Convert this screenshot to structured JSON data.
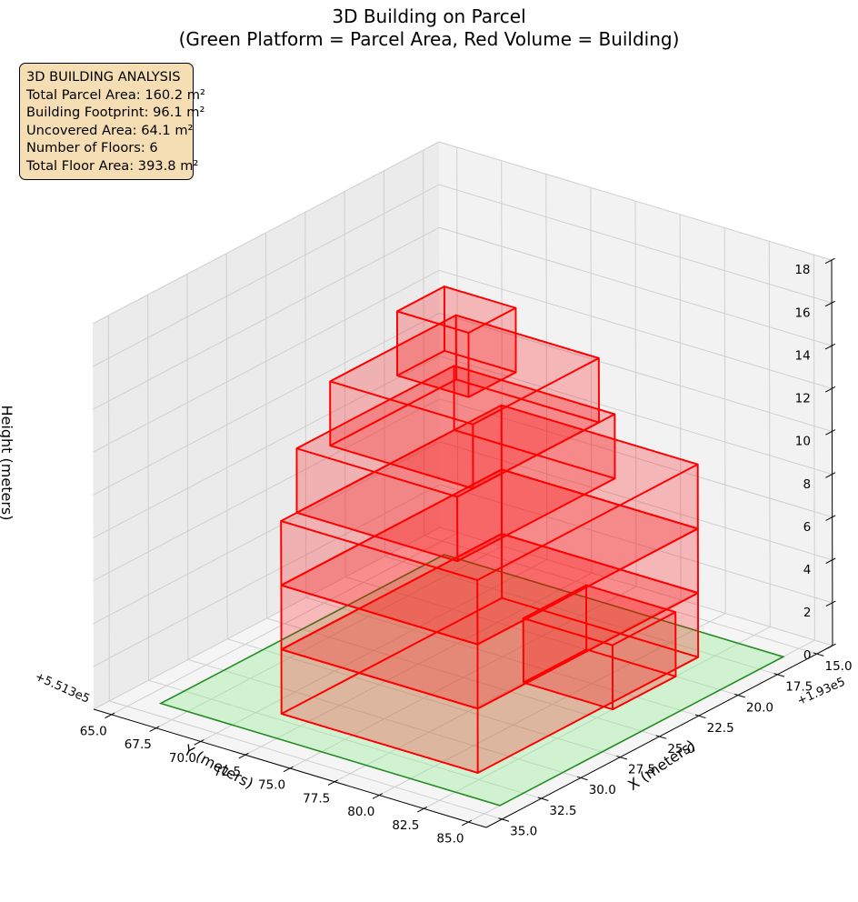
{
  "chart_data": {
    "type": "3d-bar",
    "title_line1": "3D Building on Parcel",
    "title_line2": "(Green Platform = Parcel Area, Red Volume = Building)",
    "xlabel": "X (meters)",
    "ylabel": "Y (meters)",
    "zlabel": "Height (meters)",
    "x_offset_label": "+1.93e5",
    "y_offset_label": "+5.513e5",
    "xlim": [
      64,
      86
    ],
    "ylim": [
      14,
      36
    ],
    "zlim": [
      0,
      18
    ],
    "x_ticks": [
      "65.0",
      "67.5",
      "70.0",
      "72.5",
      "75.0",
      "77.5",
      "80.0",
      "82.5",
      "85.0"
    ],
    "y_ticks": [
      "15.0",
      "17.5",
      "20.0",
      "22.5",
      "25.0",
      "27.5",
      "30.0",
      "32.5",
      "35.0"
    ],
    "z_ticks": [
      "0",
      "2",
      "4",
      "6",
      "8",
      "10",
      "12",
      "14",
      "16",
      "18"
    ],
    "parcel": {
      "x_range": [
        66,
        85
      ],
      "y_range": [
        16,
        34
      ],
      "color": "#90ee90",
      "edge_color": "#228b22"
    },
    "building_color": "#ff0000",
    "building_boxes": [
      {
        "x_range": [
          77.5,
          82.5
        ],
        "y_range": [
          20,
          24
        ],
        "z_range": [
          0,
          3
        ]
      },
      {
        "x_range": [
          71,
          82
        ],
        "y_range": [
          18,
          32
        ],
        "z_range": [
          0,
          3
        ]
      },
      {
        "x_range": [
          71,
          82
        ],
        "y_range": [
          18,
          32
        ],
        "z_range": [
          3,
          6
        ]
      },
      {
        "x_range": [
          71,
          82
        ],
        "y_range": [
          18,
          32
        ],
        "z_range": [
          6,
          9
        ]
      },
      {
        "x_range": [
          71,
          80
        ],
        "y_range": [
          21,
          31
        ],
        "z_range": [
          9,
          12
        ]
      },
      {
        "x_range": [
          72,
          80
        ],
        "y_range": [
          22,
          30
        ],
        "z_range": [
          12,
          15
        ]
      },
      {
        "x_range": [
          74,
          78
        ],
        "y_range": [
          25,
          28
        ],
        "z_range": [
          15,
          18
        ]
      }
    ]
  },
  "info_box": {
    "title": "3D BUILDING ANALYSIS",
    "lines": [
      "Total Parcel Area: 160.2 m²",
      "Building Footprint: 96.1 m²",
      "Uncovered Area: 64.1 m²",
      "Number of Floors: 6",
      "Total Floor Area: 393.8 m²"
    ]
  }
}
